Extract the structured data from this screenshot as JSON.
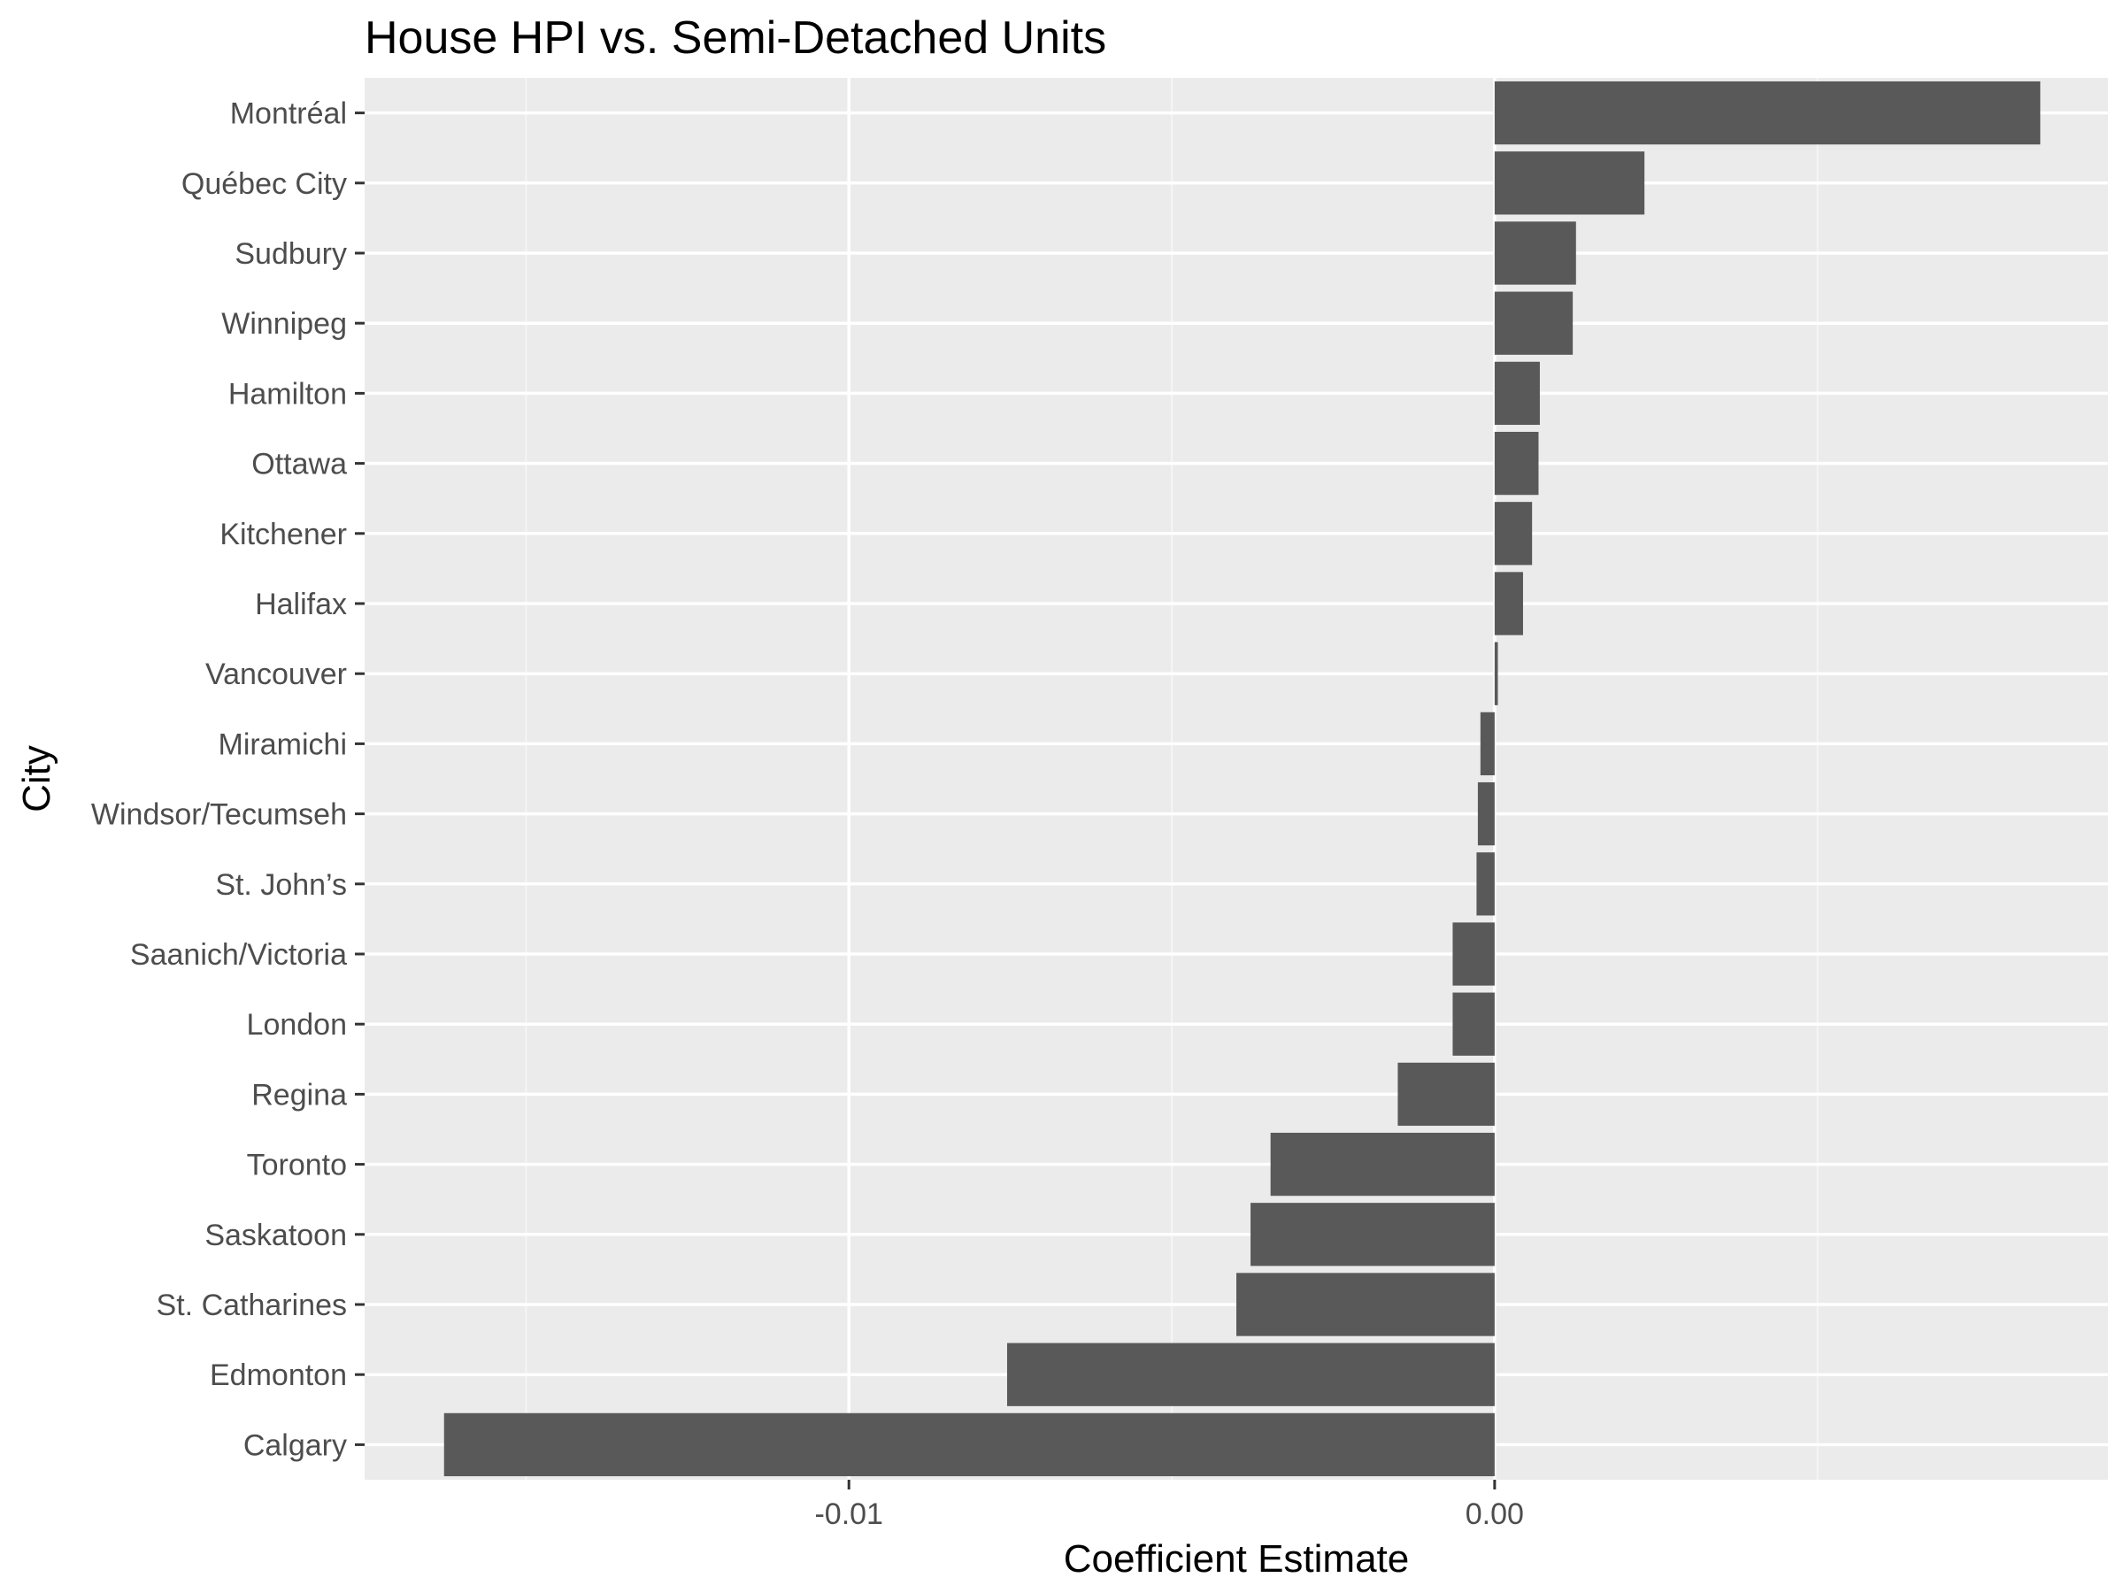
{
  "chart_data": {
    "type": "bar",
    "orientation": "horizontal",
    "title": "House HPI vs. Semi-Detached Units",
    "xlabel": "Coefficient Estimate",
    "ylabel": "City",
    "xlim": [
      -0.0175,
      0.0095
    ],
    "x_ticks": [
      {
        "value": -0.01,
        "label": "-0.01"
      },
      {
        "value": 0.0,
        "label": "0.00"
      }
    ],
    "x_minor_grid": [
      -0.015,
      -0.005,
      0.005
    ],
    "categories": [
      "Montréal",
      "Québec City",
      "Sudbury",
      "Winnipeg",
      "Hamilton",
      "Ottawa",
      "Kitchener",
      "Halifax",
      "Vancouver",
      "Miramichi",
      "Windsor/Tecumseh",
      "St. John’s",
      "Saanich/Victoria",
      "London",
      "Regina",
      "Toronto",
      "Saskatoon",
      "St. Catharines",
      "Edmonton",
      "Calgary"
    ],
    "values": [
      0.00845,
      0.00232,
      0.00126,
      0.00121,
      0.0007,
      0.00068,
      0.00058,
      0.00044,
      5e-05,
      -0.00022,
      -0.00026,
      -0.00028,
      -0.00065,
      -0.00065,
      -0.0015,
      -0.00347,
      -0.00378,
      -0.004,
      -0.00755,
      -0.01627
    ],
    "grid": true,
    "legend": "none",
    "colors": {
      "bar": "#595959",
      "panel_background": "#ebebeb",
      "grid_major": "#ffffff",
      "grid_minor": "#f5f5f5",
      "tick_label": "#4d4d4d",
      "tick_mark": "#333333",
      "title": "#000000"
    }
  }
}
